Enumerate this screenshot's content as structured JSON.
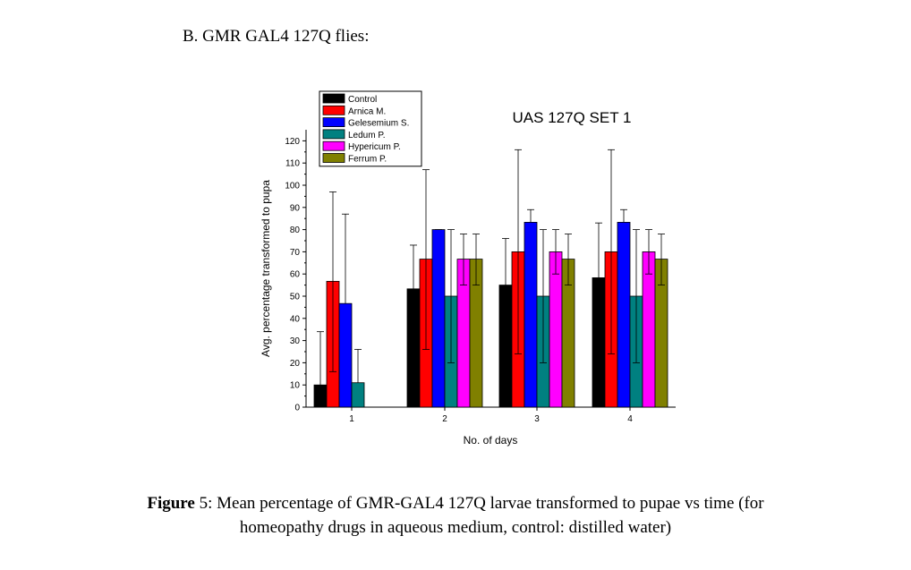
{
  "heading": "B.  GMR GAL4 127Q flies:",
  "caption": {
    "bold": "Figure",
    "line1": " 5: Mean percentage of GMR-GAL4 127Q larvae transformed to pupae vs time (for",
    "line2": "homeopathy drugs in aqueous medium, control: distilled water)"
  },
  "chart_data": {
    "type": "bar",
    "title": "UAS 127Q SET 1",
    "xlabel": "No. of days",
    "ylabel": "Avg. percentage transformed to pupa",
    "ylim": [
      0,
      125
    ],
    "yticks": [
      0,
      10,
      20,
      30,
      40,
      50,
      60,
      70,
      80,
      90,
      100,
      110,
      120
    ],
    "categories": [
      "1",
      "2",
      "3",
      "4"
    ],
    "legend_position": "top-left",
    "series": [
      {
        "name": "Control",
        "color": "#000000",
        "values": [
          10,
          53.3,
          55,
          58.3
        ],
        "err_high": [
          34,
          73,
          76,
          83
        ]
      },
      {
        "name": "Arnica M.",
        "color": "#ff0000",
        "values": [
          56.7,
          66.7,
          70,
          70
        ],
        "err_high": [
          97,
          107,
          116,
          116
        ],
        "err_low": [
          16,
          26,
          24,
          24
        ]
      },
      {
        "name": "Gelesemium S.",
        "color": "#0000ff",
        "values": [
          46.7,
          80,
          83.3,
          83.3
        ],
        "err_high": [
          87,
          80,
          89,
          89
        ]
      },
      {
        "name": "Ledum P.",
        "color": "#008080",
        "values": [
          11,
          50,
          50,
          50
        ],
        "err_high": [
          26,
          80,
          80,
          80
        ],
        "err_low": [
          null,
          20,
          20,
          20
        ]
      },
      {
        "name": "Hypericum P.",
        "color": "#ff00ff",
        "values": [
          null,
          66.7,
          70,
          70
        ],
        "err_high": [
          null,
          78,
          80,
          80
        ],
        "err_low": [
          null,
          55,
          60,
          60
        ]
      },
      {
        "name": "Ferrum P.",
        "color": "#808000",
        "values": [
          null,
          66.7,
          66.7,
          66.7
        ],
        "err_high": [
          null,
          78,
          78,
          78
        ],
        "err_low": [
          null,
          55,
          55,
          55
        ]
      }
    ]
  }
}
